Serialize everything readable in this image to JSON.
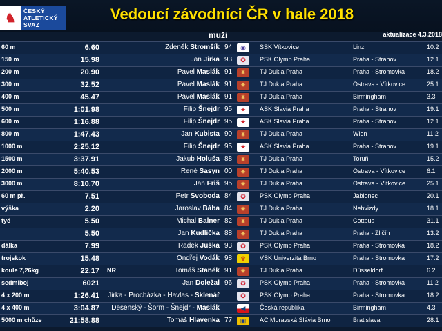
{
  "header": {
    "logo_lines": [
      "ČESKÝ",
      "ATLETICKÝ",
      "SVAZ"
    ],
    "title": "Vedoucí závodníci ČR v hale 2018",
    "subtitle": "muži",
    "update": "aktualizace 4.3.2018"
  },
  "colors": {
    "title": "#ffe000",
    "background": "#0c1a2e",
    "logo_blue": "#1b4a9c"
  },
  "rows": [
    {
      "event": "60 m",
      "result": "6.60",
      "note": "",
      "first": "Zdeněk",
      "last": "Stromšík",
      "year": "94",
      "logo": "vitkovice-logo",
      "club": "SSK Vítkovice",
      "place": "Linz",
      "date": "10.2"
    },
    {
      "event": "150 m",
      "result": "15.98",
      "note": "",
      "first": "Jan",
      "last": "Jirka",
      "year": "93",
      "logo": "olymp-logo",
      "club": "PSK Olymp Praha",
      "place": "Praha - Strahov",
      "date": "12.1"
    },
    {
      "event": "200 m",
      "result": "20.90",
      "note": "",
      "first": "Pavel",
      "last": "Maslák",
      "year": "91",
      "logo": "dukla-logo",
      "club": "TJ Dukla Praha",
      "place": "Praha - Stromovka",
      "date": "18.2"
    },
    {
      "event": "300 m",
      "result": "32.52",
      "note": "",
      "first": "Pavel",
      "last": "Maslák",
      "year": "91",
      "logo": "dukla-logo",
      "club": "TJ Dukla Praha",
      "place": "Ostrava - Vítkovice",
      "date": "25.1"
    },
    {
      "event": "400 m",
      "result": "45.47",
      "note": "",
      "first": "Pavel",
      "last": "Maslák",
      "year": "91",
      "logo": "dukla-logo",
      "club": "TJ Dukla Praha",
      "place": "Birmingham",
      "date": "3.3"
    },
    {
      "event": "500 m",
      "result": "1:01.98",
      "note": "",
      "first": "Filip",
      "last": "Šnejdr",
      "year": "95",
      "logo": "slavia-logo",
      "club": "ASK Slavia Praha",
      "place": "Praha - Strahov",
      "date": "19.1"
    },
    {
      "event": "600 m",
      "result": "1:16.88",
      "note": "",
      "first": "Filip",
      "last": "Šnejdr",
      "year": "95",
      "logo": "slavia-logo",
      "club": "ASK Slavia Praha",
      "place": "Praha - Strahov",
      "date": "12.1"
    },
    {
      "event": "800 m",
      "result": "1:47.43",
      "note": "",
      "first": "Jan",
      "last": "Kubista",
      "year": "90",
      "logo": "dukla-logo",
      "club": "TJ Dukla Praha",
      "place": "Wien",
      "date": "11.2"
    },
    {
      "event": "1000 m",
      "result": "2:25.12",
      "note": "",
      "first": "Filip",
      "last": "Šnejdr",
      "year": "95",
      "logo": "slavia-logo",
      "club": "ASK Slavia Praha",
      "place": "Praha - Strahov",
      "date": "19.1"
    },
    {
      "event": "1500 m",
      "result": "3:37.91",
      "note": "",
      "first": "Jakub",
      "last": "Holuša",
      "year": "88",
      "logo": "dukla-logo",
      "club": "TJ Dukla Praha",
      "place": "Toruň",
      "date": "15.2"
    },
    {
      "event": "2000 m",
      "result": "5:40.53",
      "note": "",
      "first": "René",
      "last": "Sasyn",
      "year": "00",
      "logo": "dukla-logo",
      "club": "TJ Dukla Praha",
      "place": "Ostrava - Vítkovice",
      "date": "6.1"
    },
    {
      "event": "3000 m",
      "result": "8:10.70",
      "note": "",
      "first": "Jan",
      "last": "Friš",
      "year": "95",
      "logo": "dukla-logo",
      "club": "TJ Dukla Praha",
      "place": "Ostrava - Vítkovice",
      "date": "25.1"
    },
    {
      "event": "60 m př.",
      "result": "7.51",
      "note": "",
      "first": "Petr",
      "last": "Svoboda",
      "year": "84",
      "logo": "olymp-logo",
      "club": "PSK Olymp Praha",
      "place": "Jablonec",
      "date": "20.1"
    },
    {
      "event": "výška",
      "result": "2.20",
      "note": "",
      "first": "Jaroslav",
      "last": "Bába",
      "year": "84",
      "logo": "dukla-logo",
      "club": "TJ Dukla Praha",
      "place": "Nehvizdy",
      "date": "18.1"
    },
    {
      "event": "tyč",
      "result": "5.50",
      "note": "",
      "first": "Michal",
      "last": "Balner",
      "year": "82",
      "logo": "dukla-logo",
      "club": "TJ Dukla Praha",
      "place": "Cottbus",
      "date": "31.1"
    },
    {
      "event": "",
      "result": "5.50",
      "note": "",
      "first": "Jan",
      "last": "Kudlička",
      "year": "88",
      "logo": "dukla-logo",
      "club": "TJ Dukla Praha",
      "place": "Praha - Zličín",
      "date": "13.2"
    },
    {
      "event": "dálka",
      "result": "7.99",
      "note": "",
      "first": "Radek",
      "last": "Juška",
      "year": "93",
      "logo": "olymp-logo",
      "club": "PSK Olymp Praha",
      "place": "Praha - Stromovka",
      "date": "18.2"
    },
    {
      "event": "trojskok",
      "result": "15.48",
      "note": "",
      "first": "Ondřej",
      "last": "Vodák",
      "year": "98",
      "logo": "vsk-brno-logo",
      "club": "VSK Univerzita Brno",
      "place": "Praha - Stromovka",
      "date": "17.2"
    },
    {
      "event": "koule 7,26kg",
      "result": "22.17",
      "note": "NR",
      "first": "Tomáš",
      "last": "Staněk",
      "year": "91",
      "logo": "dukla-logo",
      "club": "TJ Dukla Praha",
      "place": "Düsseldorf",
      "date": "6.2"
    },
    {
      "event": "sedmiboj",
      "result": "6021",
      "note": "",
      "first": "Jan",
      "last": "Doležal",
      "year": "96",
      "logo": "olymp-logo",
      "club": "PSK Olymp Praha",
      "place": "Praha - Stromovka",
      "date": "11.2"
    },
    {
      "event": "4 x 200 m",
      "result": "1:26.41",
      "note": "",
      "first": "Jirka - Procházka - Havlas -",
      "last": "Sklenář",
      "year": "",
      "logo": "olymp-logo",
      "club": "PSK Olymp Praha",
      "place": "Praha - Stromovka",
      "date": "18.2"
    },
    {
      "event": "4 x 400 m",
      "result": "3:04.87",
      "note": "",
      "first": "Desenský - Šorm - Šnejdr -",
      "last": "Maslák",
      "year": "",
      "logo": "czech-flag",
      "club": "Česká republika",
      "place": "Birmingham",
      "date": "4.3"
    },
    {
      "event": "5000 m chůze",
      "result": "21:58.88",
      "note": "",
      "first": "Tomáš",
      "last": "Hlavenka",
      "year": "77",
      "logo": "amsb-logo",
      "club": "AC Moravská Slávia Brno",
      "place": "Bratislava",
      "date": "28.1"
    }
  ]
}
